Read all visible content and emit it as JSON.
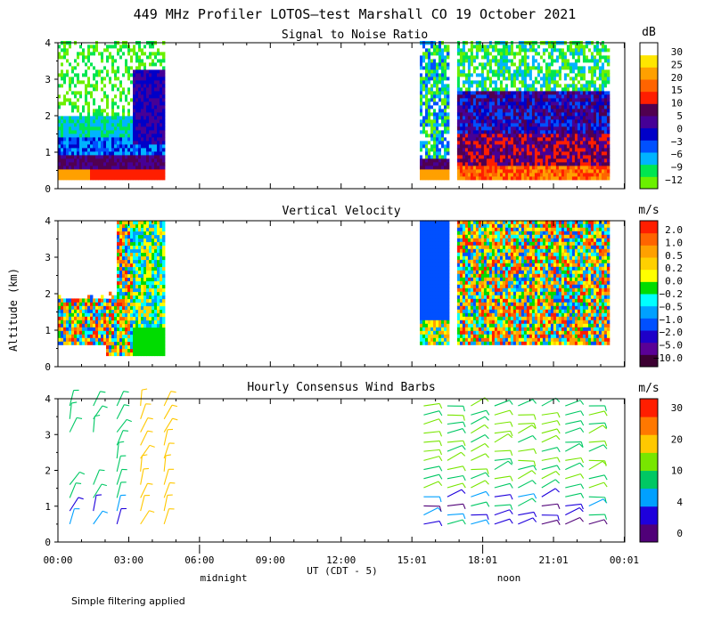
{
  "header": {
    "title": "449 MHz Profiler LOTOS—test Marshall CO 19 October 2021"
  },
  "footer": {
    "note": "Simple filtering applied",
    "xlabel": "UT  (CDT - 5)",
    "midnight_label": "midnight",
    "noon_label": "noon"
  },
  "shared_x": {
    "ticks": [
      "00:00",
      "03:00",
      "06:00",
      "09:00",
      "12:00",
      "15:01",
      "18:01",
      "21:01",
      "00:01"
    ],
    "ylabel": "Altitude (km)"
  },
  "colors": {
    "snr_scale": [
      "#6bf000",
      "#00e650",
      "#00b4ff",
      "#0050ff",
      "#0000c8",
      "#460096",
      "#500050",
      "#ff1e00",
      "#ff6400",
      "#ffa000",
      "#ffe600",
      "#ffffff"
    ],
    "vel_scale": [
      "#3c0032",
      "#5a0096",
      "#1e00c8",
      "#0050ff",
      "#00a0ff",
      "#00ffff",
      "#00dc00",
      "#ffff00",
      "#ffd000",
      "#ffa000",
      "#ff6400",
      "#ff1e00"
    ],
    "wind_scale": [
      "#500078",
      "#1e00dc",
      "#00a0ff",
      "#00c864",
      "#78e600",
      "#ffc800",
      "#ff7800",
      "#ff1e00"
    ]
  },
  "chart_data": [
    {
      "type": "heatmap",
      "title": "Signal to Noise Ratio",
      "unit": "dB",
      "ylim": [
        0,
        4
      ],
      "yticks": [
        "0",
        "1",
        "2",
        "3",
        "4"
      ],
      "colorbar_labels": [
        "30",
        "25",
        "20",
        "15",
        "10",
        "5",
        "0",
        "−3",
        "−6",
        "−9",
        "−12"
      ],
      "segments": [
        {
          "start": "00:00",
          "end": "04:30"
        },
        {
          "start": "15:20",
          "end": "16:30"
        },
        {
          "start": "16:55",
          "end": "23:20"
        }
      ]
    },
    {
      "type": "heatmap",
      "title": "Vertical Velocity",
      "unit": "m/s",
      "ylim": [
        0,
        4
      ],
      "yticks": [
        "0",
        "1",
        "2",
        "3",
        "4"
      ],
      "colorbar_labels": [
        "2.0",
        "1.0",
        "0.5",
        "0.2",
        "0.0",
        "−0.2",
        "−0.5",
        "−1.0",
        "−2.0",
        "−5.0",
        "−10.0"
      ],
      "segments": [
        {
          "start": "00:00",
          "end": "04:30"
        },
        {
          "start": "15:20",
          "end": "16:30"
        },
        {
          "start": "16:55",
          "end": "23:20"
        }
      ]
    },
    {
      "type": "scatter",
      "title": "Hourly Consensus Wind Barbs",
      "unit": "m/s",
      "ylim": [
        0,
        4
      ],
      "yticks": [
        "0",
        "1",
        "2",
        "3",
        "4"
      ],
      "colorbar_labels": [
        "30",
        "20",
        "10",
        "4",
        "0"
      ],
      "hours": [
        0.5,
        1.5,
        2.5,
        3.5,
        4.5,
        15.5,
        16.5,
        17.5,
        18.5,
        19.5,
        20.5,
        21.5,
        22.5
      ]
    }
  ]
}
